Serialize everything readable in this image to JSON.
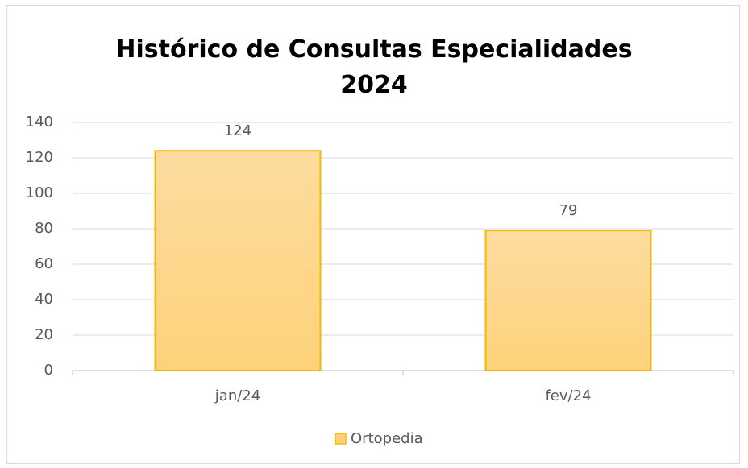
{
  "chart_data": {
    "type": "bar",
    "title": "Histórico de Consultas Especialidades 2024",
    "categories": [
      "jan/24",
      "fev/24"
    ],
    "series": [
      {
        "name": "Ortopedia",
        "color": "#fdd27a",
        "values": [
          124,
          79
        ]
      }
    ],
    "ylim": [
      0,
      140
    ],
    "yticks": [
      0,
      20,
      40,
      60,
      80,
      100,
      120,
      140
    ],
    "grid": true,
    "legend": "bottom"
  }
}
